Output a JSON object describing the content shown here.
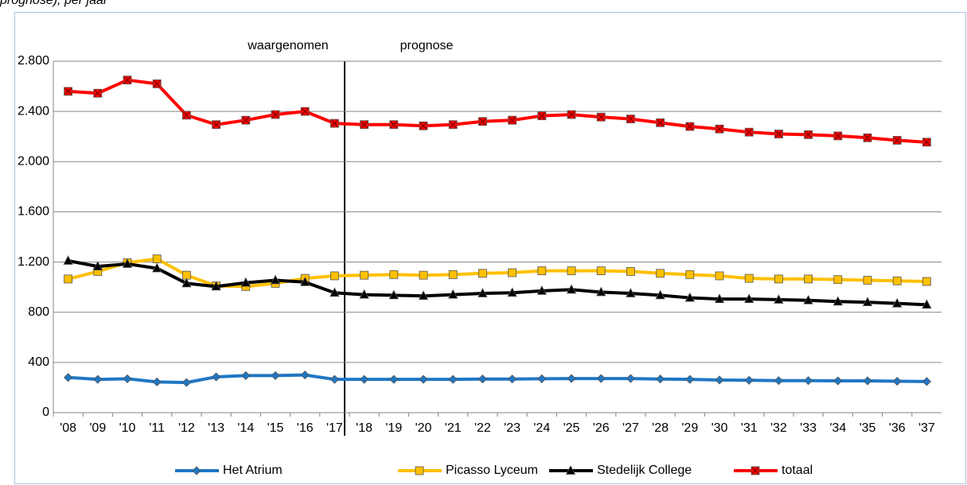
{
  "chart_data": {
    "type": "line",
    "title": "prognose), per jaar",
    "annotations": [
      "waargenomen",
      "prognose"
    ],
    "categories": [
      "'08",
      "'09",
      "'10",
      "'11",
      "'12",
      "'13",
      "'14",
      "'15",
      "'16",
      "'17",
      "'18",
      "'19",
      "'20",
      "'21",
      "'22",
      "'23",
      "'24",
      "'25",
      "'26",
      "'27",
      "'28",
      "'29",
      "'30",
      "'31",
      "'32",
      "'33",
      "'34",
      "'35",
      "'36",
      "'37"
    ],
    "series": [
      {
        "name": "Het Atrium",
        "color": "#1f77c4",
        "marker": "diamond",
        "values": [
          280,
          265,
          270,
          245,
          240,
          285,
          295,
          295,
          300,
          265,
          265,
          265,
          265,
          265,
          268,
          268,
          270,
          272,
          272,
          272,
          268,
          265,
          260,
          258,
          255,
          255,
          253,
          253,
          250,
          248
        ]
      },
      {
        "name": "Picasso Lyceum",
        "color": "#ffc000",
        "marker": "square",
        "values": [
          1065,
          1125,
          1195,
          1225,
          1095,
          1010,
          1005,
          1030,
          1070,
          1090,
          1095,
          1100,
          1095,
          1100,
          1110,
          1115,
          1130,
          1130,
          1130,
          1125,
          1110,
          1100,
          1090,
          1070,
          1065,
          1065,
          1060,
          1055,
          1050,
          1045
        ]
      },
      {
        "name": "Stedelijk College",
        "color": "#000000",
        "marker": "triangle",
        "values": [
          1210,
          1165,
          1185,
          1150,
          1030,
          1005,
          1035,
          1055,
          1040,
          955,
          940,
          935,
          930,
          940,
          950,
          955,
          970,
          980,
          960,
          950,
          935,
          915,
          905,
          905,
          900,
          895,
          885,
          880,
          870,
          860
        ]
      },
      {
        "name": "totaal",
        "color": "#ff0000",
        "marker": "xsquare",
        "values": [
          2560,
          2545,
          2650,
          2620,
          2370,
          2295,
          2330,
          2375,
          2400,
          2305,
          2295,
          2295,
          2285,
          2295,
          2320,
          2330,
          2365,
          2375,
          2355,
          2340,
          2310,
          2280,
          2260,
          2235,
          2220,
          2215,
          2205,
          2190,
          2170,
          2155
        ]
      }
    ],
    "ylim": [
      0,
      2800
    ],
    "yticks": [
      0,
      400,
      800,
      {
        "value": 1200,
        "label": "1.200"
      },
      {
        "value": 1600,
        "label": "1.600"
      },
      {
        "value": 2000,
        "label": "2.000"
      },
      {
        "value": 2400,
        "label": "2.400"
      },
      {
        "value": 2800,
        "label": "2.800"
      }
    ],
    "grid": true,
    "legend": "bottom"
  }
}
